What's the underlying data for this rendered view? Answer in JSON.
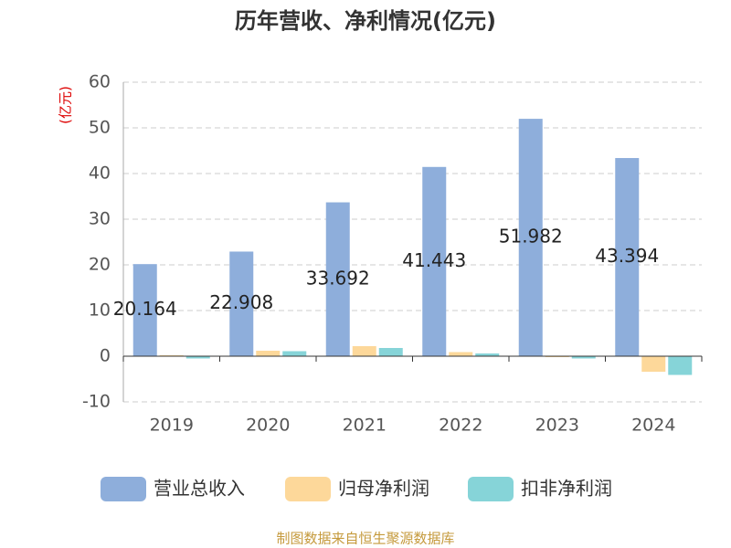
{
  "chart_data": {
    "type": "bar",
    "title": "历年营收、净利情况(亿元)",
    "y_label": "(亿元)",
    "source": "制图数据来自恒生聚源数据库",
    "categories": [
      "2019",
      "2020",
      "2021",
      "2022",
      "2023",
      "2024"
    ],
    "series": [
      {
        "name": "营业总收入",
        "color": "#8eaedb",
        "values": [
          20.164,
          22.908,
          33.692,
          41.443,
          51.982,
          43.394
        ],
        "labels": true
      },
      {
        "name": "归母净利润",
        "color": "#fdd89a",
        "values": [
          0.2,
          1.2,
          2.2,
          0.9,
          -0.2,
          -3.4
        ]
      },
      {
        "name": "扣非净利润",
        "color": "#86d4d8",
        "values": [
          -0.5,
          1.1,
          1.8,
          0.6,
          -0.5,
          -4.1
        ]
      }
    ],
    "ylim": [
      -10,
      60
    ],
    "yticks": [
      -10,
      0,
      10,
      20,
      30,
      40,
      50,
      60
    ],
    "grid": true
  }
}
